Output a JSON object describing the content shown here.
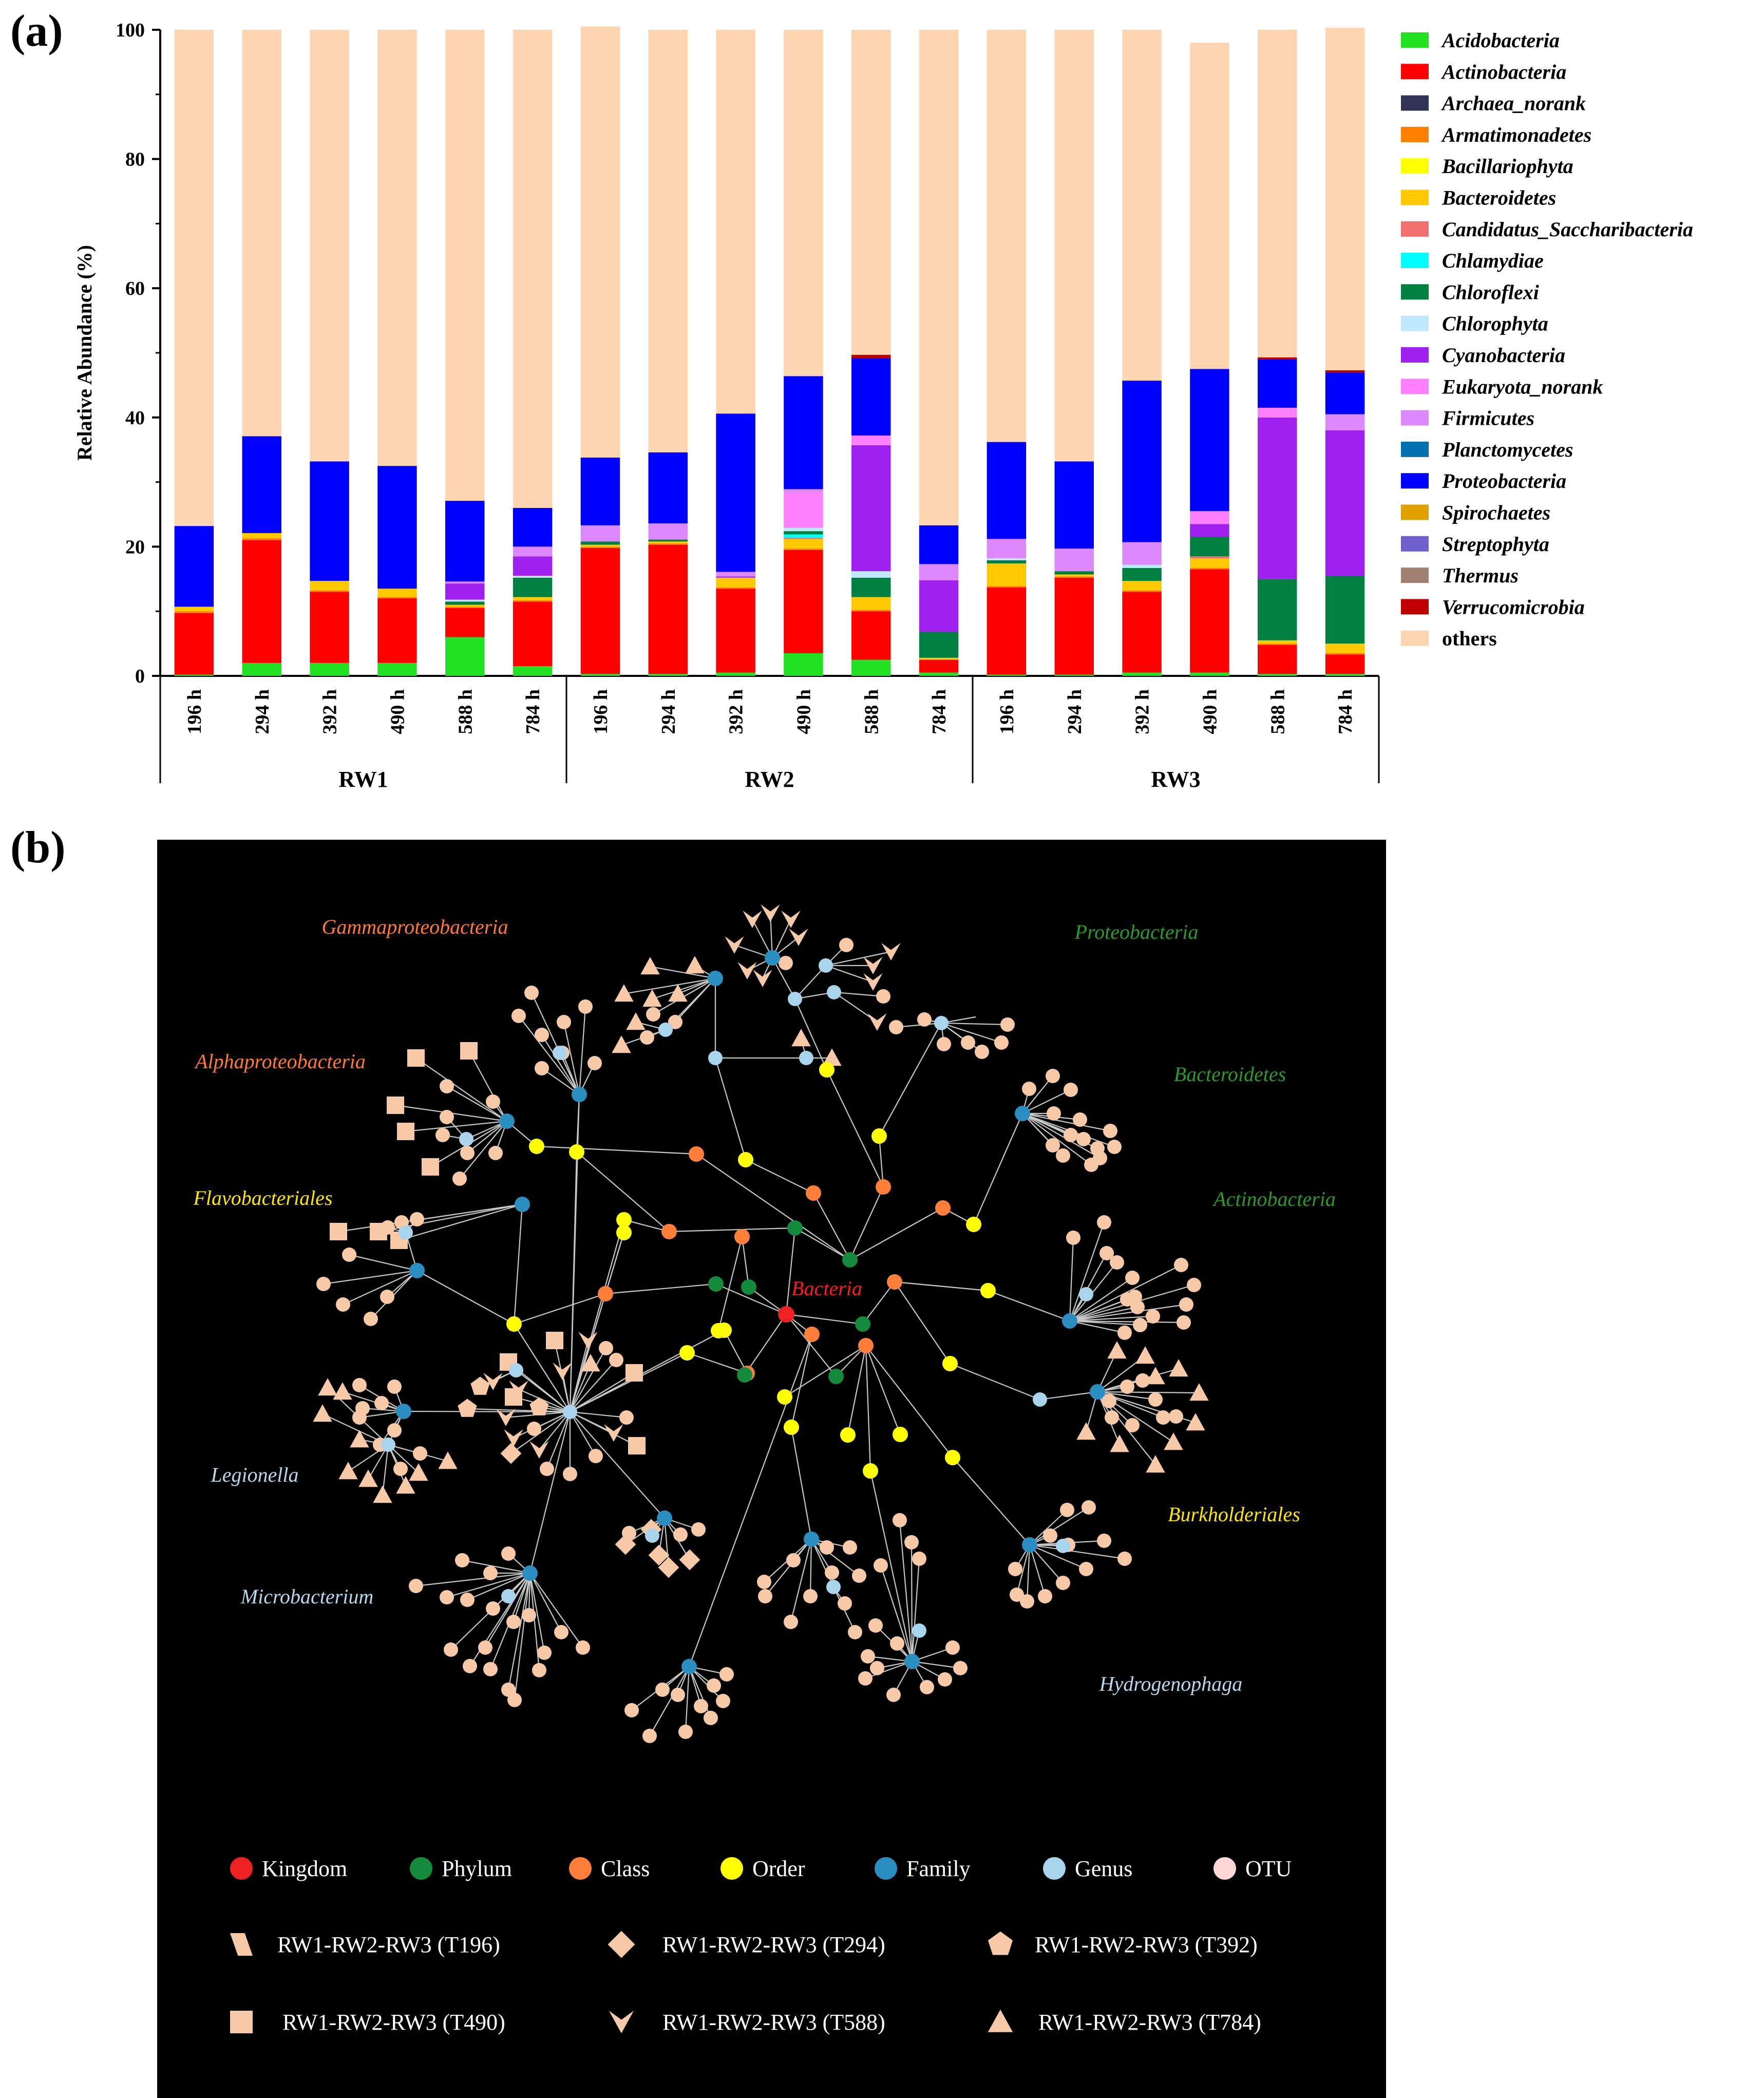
{
  "panels": {
    "a_label": "(a)",
    "b_label": "(b)"
  },
  "chart_data": [
    {
      "type": "bar",
      "stacked": true,
      "ylabel": "Relative Abundance (%)",
      "ylim": [
        0,
        100
      ],
      "yticks": [
        "0",
        "20",
        "40",
        "60",
        "80",
        "100"
      ],
      "groups": [
        {
          "name": "RW1",
          "samples": [
            "196 h",
            "294 h",
            "392 h",
            "490 h",
            "588 h",
            "784 h"
          ]
        },
        {
          "name": "RW2",
          "samples": [
            "196 h",
            "294 h",
            "392 h",
            "490 h",
            "588 h",
            "784 h"
          ]
        },
        {
          "name": "RW3",
          "samples": [
            "196 h",
            "294 h",
            "392 h",
            "490 h",
            "588 h",
            "784 h"
          ]
        }
      ],
      "series": [
        {
          "name": "Acidobacteria",
          "color": "#22e022",
          "values": [
            0.2,
            2,
            2,
            2,
            6,
            1.5,
            0.3,
            0.3,
            0.5,
            3.5,
            2.5,
            0.5,
            0.2,
            0.2,
            0.5,
            0.5,
            0.3,
            0.3
          ]
        },
        {
          "name": "Actinobacteria",
          "color": "#ff0000",
          "values": [
            9.5,
            19,
            11,
            10,
            4.5,
            10,
            19.5,
            20,
            13,
            16,
            7.5,
            2,
            13.5,
            15,
            12.5,
            16,
            4.5,
            3
          ]
        },
        {
          "name": "Archaea_norank",
          "color": "#333355",
          "values": [
            0,
            0,
            0,
            0,
            0,
            0,
            0,
            0,
            0,
            0,
            0,
            0,
            0,
            0,
            0,
            0,
            0,
            0
          ]
        },
        {
          "name": "Armatimonadetes",
          "color": "#ff8000",
          "values": [
            0.3,
            0.3,
            0.2,
            0.2,
            0.2,
            0.2,
            0.2,
            0.2,
            0.2,
            0.2,
            0.2,
            0,
            0.2,
            0.2,
            0.2,
            0.2,
            0.2,
            0.2
          ]
        },
        {
          "name": "Bacillariophyta",
          "color": "#ffff00",
          "values": [
            0,
            0,
            0,
            0,
            0,
            0,
            0,
            0,
            0,
            0,
            0,
            0,
            0,
            0,
            0,
            0,
            0,
            0
          ]
        },
        {
          "name": "Bacteroidetes",
          "color": "#ffc800",
          "values": [
            0.7,
            0.8,
            1.5,
            1.3,
            0.3,
            0.5,
            0.3,
            0.3,
            1.5,
            1.5,
            2,
            0.3,
            3.5,
            0.3,
            1.5,
            1.5,
            0.5,
            1.5
          ]
        },
        {
          "name": "Candidatus_Saccharibacteria",
          "color": "#f07070",
          "values": [
            0,
            0,
            0,
            0,
            0,
            0,
            0,
            0,
            0,
            0.2,
            0,
            0,
            0,
            0,
            0,
            0.3,
            0,
            0
          ]
        },
        {
          "name": "Chlamydiae",
          "color": "#00ffff",
          "values": [
            0,
            0,
            0,
            0,
            0,
            0,
            0,
            0,
            0,
            0.5,
            0,
            0,
            0,
            0,
            0,
            0,
            0,
            0
          ]
        },
        {
          "name": "Chloroflexi",
          "color": "#008040",
          "values": [
            0,
            0,
            0,
            0,
            0.5,
            3,
            0.5,
            0.3,
            0,
            0.5,
            3,
            4,
            0.5,
            0.5,
            2,
            3,
            9.5,
            10.5
          ]
        },
        {
          "name": "Chlorophyta",
          "color": "#c0e8ff",
          "values": [
            0,
            0,
            0,
            0,
            0.3,
            0.3,
            0,
            0,
            0,
            0.5,
            1,
            0,
            0.3,
            0,
            0.5,
            0,
            0,
            0
          ]
        },
        {
          "name": "Cyanobacteria",
          "color": "#a020f0",
          "values": [
            0,
            0,
            0,
            0,
            2.5,
            3,
            0,
            0,
            0.2,
            0,
            19.5,
            8,
            0,
            0,
            0,
            2,
            25,
            22.5
          ]
        },
        {
          "name": "Eukaryota_norank",
          "color": "#ff80ff",
          "values": [
            0,
            0,
            0,
            0,
            0,
            0,
            0,
            0,
            0,
            5.5,
            1.5,
            0,
            0,
            0,
            0,
            2,
            1.5,
            0
          ]
        },
        {
          "name": "Firmicutes",
          "color": "#dd88ff",
          "values": [
            0,
            0,
            0,
            0,
            0.3,
            1.5,
            2.5,
            2.5,
            0.7,
            0.5,
            0,
            2.5,
            3,
            3.5,
            3.5,
            0,
            0,
            2.5
          ]
        },
        {
          "name": "Planctomycetes",
          "color": "#0070b0",
          "values": [
            0,
            0,
            0,
            0,
            0,
            0,
            0,
            0,
            0,
            0,
            0,
            0,
            0,
            0,
            0,
            0,
            0,
            0
          ]
        },
        {
          "name": "Proteobacteria",
          "color": "#0000ff",
          "values": [
            12.5,
            15,
            18.5,
            19,
            12.5,
            6,
            10.5,
            11,
            24.5,
            17.5,
            12,
            6,
            15,
            13.5,
            25,
            22,
            7.5,
            6.5
          ]
        },
        {
          "name": "Spirochaetes",
          "color": "#e0a000",
          "values": [
            0,
            0,
            0,
            0,
            0,
            0,
            0,
            0,
            0,
            0,
            0,
            0,
            0,
            0,
            0,
            0,
            0,
            0
          ]
        },
        {
          "name": "Streptophyta",
          "color": "#7060cc",
          "values": [
            0,
            0,
            0,
            0,
            0,
            0,
            0,
            0,
            0,
            0,
            0,
            0,
            0,
            0,
            0,
            0,
            0,
            0
          ]
        },
        {
          "name": "Thermus",
          "color": "#a08070",
          "values": [
            0,
            0,
            0,
            0,
            0,
            0,
            0,
            0,
            0,
            0,
            0,
            0,
            0,
            0,
            0,
            0,
            0,
            0
          ]
        },
        {
          "name": "Verrucomicrobia",
          "color": "#c00000",
          "values": [
            0,
            0,
            0,
            0,
            0,
            0,
            0,
            0,
            0,
            0,
            0.5,
            0,
            0,
            0,
            0,
            0,
            0.3,
            0.3
          ]
        },
        {
          "name": "others",
          "color": "#fdd5b1",
          "values": [
            76.8,
            62.9,
            66.8,
            67.5,
            72.9,
            74,
            66.7,
            65.4,
            59.4,
            53.6,
            50.3,
            76.7,
            63.8,
            66.8,
            54.3,
            50.5,
            50.7,
            53
          ]
        }
      ]
    },
    {
      "type": "network",
      "labels": {
        "root": "Bacteria",
        "gammaproteobacteria": "Gammaproteobacteria",
        "alphaproteobacteria": "Alphaproteobacteria",
        "flavobacteriales": "Flavobacteriales",
        "proteobacteria": "Proteobacteria",
        "bacteroidetes": "Bacteroidetes",
        "actinobacteria": "Actinobacteria",
        "legionella": "Legionella",
        "microbacterium": "Microbacterium",
        "burkholderiales": "Burkholderiales",
        "hydrogenophaga": "Hydrogenophaga"
      },
      "label_colors": {
        "orange": "#ff7a30",
        "green": "#2a9a2a",
        "yellow": "#ffe600",
        "light_blue": "#b8d8f0",
        "red": "#ff1a1a"
      },
      "node_legend": [
        {
          "name": "Kingdom",
          "color": "#ee2222"
        },
        {
          "name": "Phylum",
          "color": "#138a3c"
        },
        {
          "name": "Class",
          "color": "#ff7f3a"
        },
        {
          "name": "Order",
          "color": "#ffff00"
        },
        {
          "name": "Family",
          "color": "#2a8fc0"
        },
        {
          "name": "Genus",
          "color": "#a8d4ee"
        },
        {
          "name": "OTU",
          "color": "#ffd6d6"
        }
      ],
      "shape_legend": [
        {
          "shape": "parallelogram",
          "label": "RW1-RW2-RW3 (T196)"
        },
        {
          "shape": "diamond",
          "label": "RW1-RW2-RW3 (T294)"
        },
        {
          "shape": "pentagon",
          "label": "RW1-RW2-RW3 (T392)"
        },
        {
          "shape": "square",
          "label": "RW1-RW2-RW3 (T490)"
        },
        {
          "shape": "v",
          "label": "RW1-RW2-RW3 (T588)"
        },
        {
          "shape": "triangle",
          "label": "RW1-RW2-RW3 (T784)"
        }
      ],
      "edge_color": "#c8c8c8",
      "leaf_color": "#f7c9a6",
      "background": "#000000"
    }
  ]
}
